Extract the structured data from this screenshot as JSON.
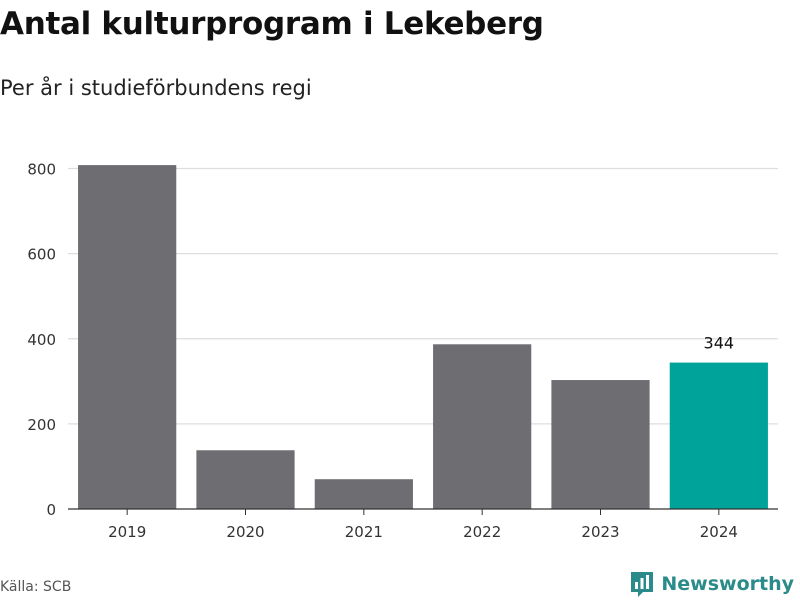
{
  "title": "Antal kulturprogram i Lekeberg",
  "subtitle": "Per år i studieförbundens regi",
  "source": "Källa: SCB",
  "brand": {
    "name": "Newsworthy",
    "icon": "newsworthy-logo-icon"
  },
  "colors": {
    "bar": "#6e6d72",
    "highlight": "#00a39a",
    "grid": "#dddddd",
    "axis": "#333333",
    "brand": "#2b8a8a"
  },
  "chart_data": {
    "type": "bar",
    "categories": [
      "2019",
      "2020",
      "2021",
      "2022",
      "2023",
      "2024"
    ],
    "values": [
      808,
      138,
      70,
      387,
      303,
      344
    ],
    "highlight_index": 5,
    "data_labels": [
      {
        "index": 5,
        "text": "344"
      }
    ],
    "yticks": [
      "0",
      "200",
      "400",
      "600",
      "800"
    ],
    "ylim": [
      0,
      820
    ],
    "grid": true,
    "title": "Antal kulturprogram i Lekeberg",
    "subtitle": "Per år i studieförbundens regi",
    "xlabel": "",
    "ylabel": ""
  }
}
